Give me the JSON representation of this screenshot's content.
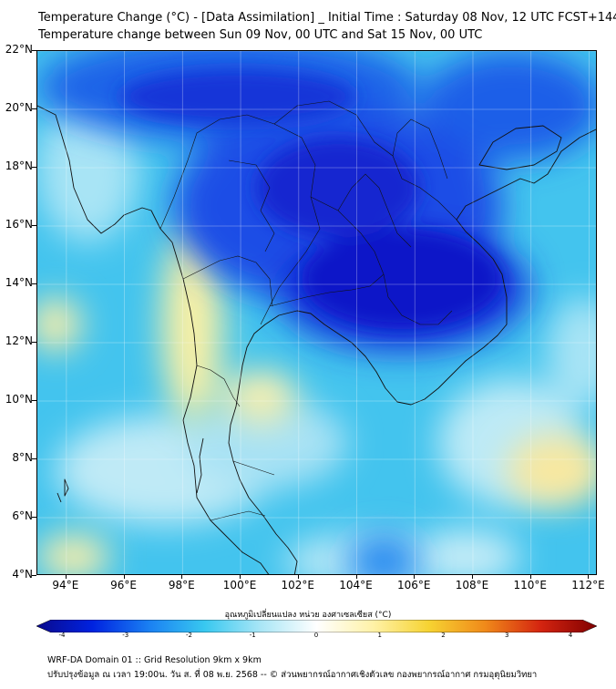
{
  "title": {
    "line1": "Temperature Change (°C) - [Data Assimilation] _ Initial Time : Saturday 08 Nov, 12 UTC FCST+144",
    "line2": "Temperature change between Sun 09 Nov, 00 UTC and Sat 15 Nov, 00 UTC"
  },
  "axes": {
    "y_labels": [
      "22°N",
      "20°N",
      "18°N",
      "16°N",
      "14°N",
      "12°N",
      "10°N",
      "8°N",
      "6°N",
      "4°N"
    ],
    "x_labels": [
      "94°E",
      "96°E",
      "98°E",
      "100°E",
      "102°E",
      "104°E",
      "106°E",
      "108°E",
      "110°E",
      "112°E"
    ],
    "lat_range": [
      4,
      22
    ],
    "lon_range": [
      93,
      112.3
    ],
    "grid": true
  },
  "colorbar": {
    "label": "อุณหภูมิเปลี่ยนแปลง หน่วย องศาเซลเซียส (°C)",
    "ticks": [
      "-4",
      "-3",
      "-2",
      "-1",
      "0",
      "1",
      "2",
      "3",
      "4"
    ],
    "colors": [
      "#0a0a8c",
      "#0022e0",
      "#1a7ff2",
      "#38c8f0",
      "#a9e6f6",
      "#ffffff",
      "#fff2a8",
      "#f6d332",
      "#f08a1a",
      "#d42410",
      "#800000"
    ]
  },
  "field": {
    "dominant_color": "#3fc6ef",
    "cold_core_color": "#0d13c8",
    "warm_color": "#fbf2a0"
  },
  "footer": {
    "line1": "WRF-DA Domain 01 :: Grid Resolution 9km x 9km",
    "line2": "ปรับปรุงข้อมูล ณ เวลา 19:00น. วัน ส. ที่ 08 พ.ย. 2568 -- © ส่วนพยากรณ์อากาศเชิงตัวเลข กองพยากรณ์อากาศ กรมอุตุนิยมวิทยา"
  }
}
